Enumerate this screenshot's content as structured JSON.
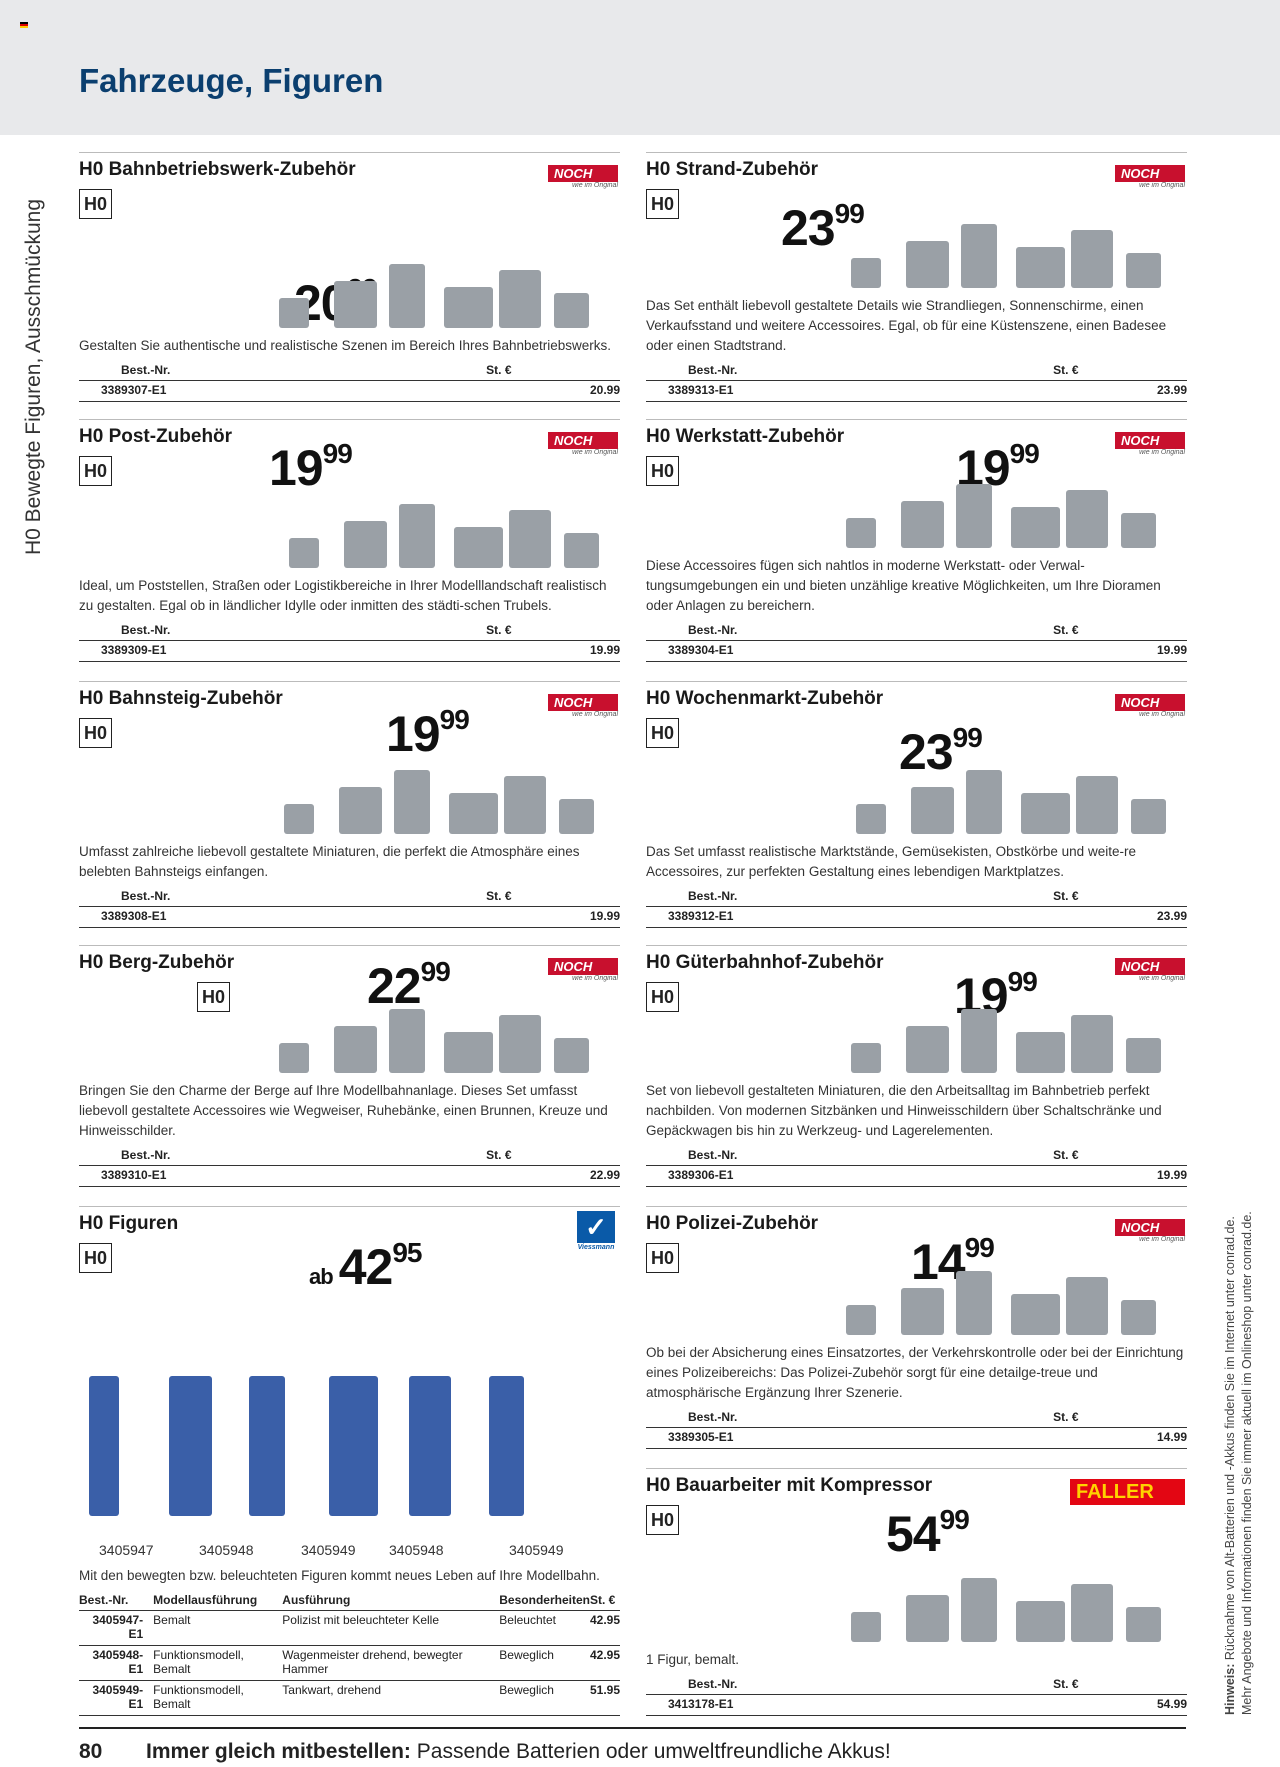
{
  "page": {
    "title": "Fahrzeuge, Figuren",
    "side_label": "H0 Bewegte Figuren, Ausschmückung",
    "page_number": "80",
    "footer_bold": "Immer gleich mitbestellen:",
    "footer_text": " Passende Batterien oder umweltfreundliche Akkus!",
    "hint_bold": "Hinweis:",
    "hint_line1": " Rücknahme von Alt-Batterien und -Akkus finden Sie im Internet unter conrad.de.",
    "hint_line2": "Mehr Angebote und Informationen finden Sie immer aktuell im Onlineshop unter conrad.de."
  },
  "colors": {
    "title": "#0b3f6f",
    "noch": "#c8102e",
    "faller": "#e30613",
    "header_bg": "#e8e9eb"
  },
  "table_headers": {
    "nr": "Best.-Nr.",
    "price": "St. €",
    "model": "Modellausführung",
    "exec": "Ausführung",
    "special": "Besonderheiten"
  },
  "products": [
    {
      "title": "H0 Bahnbetriebswerk-Zubehör",
      "badge": "H0",
      "brand": "NOCH",
      "brand_tag": "wie im Original",
      "price_int": "20",
      "price_cents": "99",
      "desc": "Gestalten Sie\nauthentische und realistische Szenen im Bereich Ihres Bahnbetriebswerks.",
      "nr": "3389307-E1",
      "price": "20.99"
    },
    {
      "title": "H0 Strand-Zubehör",
      "badge": "H0",
      "brand": "NOCH",
      "brand_tag": "wie im Original",
      "price_int": "23",
      "price_cents": "99",
      "desc": "Das Set enthält liebevoll gestaltete Details wie Strandliegen, Sonnenschirme, einen Verkaufsstand und weitere Accessoires. Egal, ob für eine Küstenszene, einen Badesee oder einen Stadtstrand.",
      "nr": "3389313-E1",
      "price": "23.99"
    },
    {
      "title": "H0 Post-Zubehör",
      "badge": "H0",
      "brand": "NOCH",
      "brand_tag": "wie im Original",
      "price_int": "19",
      "price_cents": "99",
      "desc": "Ideal, um Poststellen, Straßen oder Logistikbereiche in Ihrer Modelllandschaft realistisch zu gestalten. Egal ob in ländlicher Idylle oder inmitten des städti-schen Trubels.",
      "nr": "3389309-E1",
      "price": "19.99"
    },
    {
      "title": "H0 Werkstatt-Zubehör",
      "badge": "H0",
      "brand": "NOCH",
      "brand_tag": "wie im Original",
      "price_int": "19",
      "price_cents": "99",
      "desc": "Diese Accessoires fügen sich nahtlos in moderne Werkstatt- oder Verwal-tungsumgebungen ein und bieten unzählige kreative Möglichkeiten, um Ihre Dioramen oder Anlagen zu bereichern.",
      "nr": "3389304-E1",
      "price": "19.99"
    },
    {
      "title": "H0 Bahnsteig-Zubehör",
      "badge": "H0",
      "brand": "NOCH",
      "brand_tag": "wie im Original",
      "price_int": "19",
      "price_cents": "99",
      "desc": "Umfasst zahlreiche liebevoll gestaltete Miniaturen, die perfekt die Atmosphäre eines belebten Bahnsteigs einfangen.",
      "nr": "3389308-E1",
      "price": "19.99"
    },
    {
      "title": "H0 Wochenmarkt-Zubehör",
      "badge": "H0",
      "brand": "NOCH",
      "brand_tag": "wie im Original",
      "price_int": "23",
      "price_cents": "99",
      "desc": "Das Set umfasst realistische Marktstände, Gemüsekisten, Obstkörbe und weite-re Accessoires, zur perfekten Gestaltung eines lebendigen Marktplatzes.",
      "nr": "3389312-E1",
      "price": "23.99"
    },
    {
      "title": "H0 Berg-Zubehör",
      "badge": "H0",
      "brand": "NOCH",
      "brand_tag": "wie im Original",
      "price_int": "22",
      "price_cents": "99",
      "desc": "Bringen Sie den Charme der Berge auf Ihre Modellbahnanlage. Dieses Set umfasst liebevoll gestaltete Accessoires wie Wegweiser, Ruhebänke, einen Brunnen, Kreuze und Hinweisschilder.",
      "nr": "3389310-E1",
      "price": "22.99"
    },
    {
      "title": "H0 Güterbahnhof-Zubehör",
      "badge": "H0",
      "brand": "NOCH",
      "brand_tag": "wie im Original",
      "price_int": "19",
      "price_cents": "99",
      "desc": "Set von liebevoll gestalteten Miniaturen, die den Arbeitsalltag im Bahnbetrieb perfekt nachbilden. Von modernen Sitzbänken und Hinweisschildern über Schaltschränke und Gepäckwagen bis hin zu Werkzeug- und Lagerelementen.",
      "nr": "3389306-E1",
      "price": "19.99"
    },
    {
      "title": "H0 Figuren",
      "badge": "H0",
      "brand": "Viessmann",
      "price_prefix": "ab",
      "price_int": "42",
      "price_cents": "95",
      "figure_numbers": [
        "3405947",
        "3405948",
        "3405949",
        "3405948",
        "3405949"
      ],
      "desc": "Mit den bewegten bzw. beleuchteten Figuren kommt neues Leben auf Ihre Modellbahn.",
      "rows": [
        {
          "nr": "3405947-E1",
          "model": "Bemalt",
          "exec": "Polizist mit beleuchteter Kelle",
          "special": "Beleuchtet",
          "price": "42.95"
        },
        {
          "nr": "3405948-E1",
          "model": "Funktionsmodell, Bemalt",
          "exec": "Wagenmeister drehend, bewegter Hammer",
          "special": "Beweglich",
          "price": "42.95"
        },
        {
          "nr": "3405949-E1",
          "model": "Funktionsmodell, Bemalt",
          "exec": "Tankwart, drehend",
          "special": "Beweglich",
          "price": "51.95"
        }
      ]
    },
    {
      "title": "H0 Polizei-Zubehör",
      "badge": "H0",
      "brand": "NOCH",
      "brand_tag": "wie im Original",
      "price_int": "14",
      "price_cents": "99",
      "desc": "Ob bei der Absicherung eines Einsatzortes, der Verkehrskontrolle oder bei der Einrichtung eines Polizeibereichs: Das Polizei-Zubehör sorgt für eine detailge-treue und atmosphärische Ergänzung Ihrer Szenerie.",
      "nr": "3389305-E1",
      "price": "14.99"
    },
    {
      "title": "H0 Bauarbeiter mit Kompressor",
      "badge": "H0",
      "brand": "FALLER",
      "price_int": "54",
      "price_cents": "99",
      "desc": "1 Figur, bemalt.",
      "nr": "3413178-E1",
      "price": "54.99"
    }
  ]
}
